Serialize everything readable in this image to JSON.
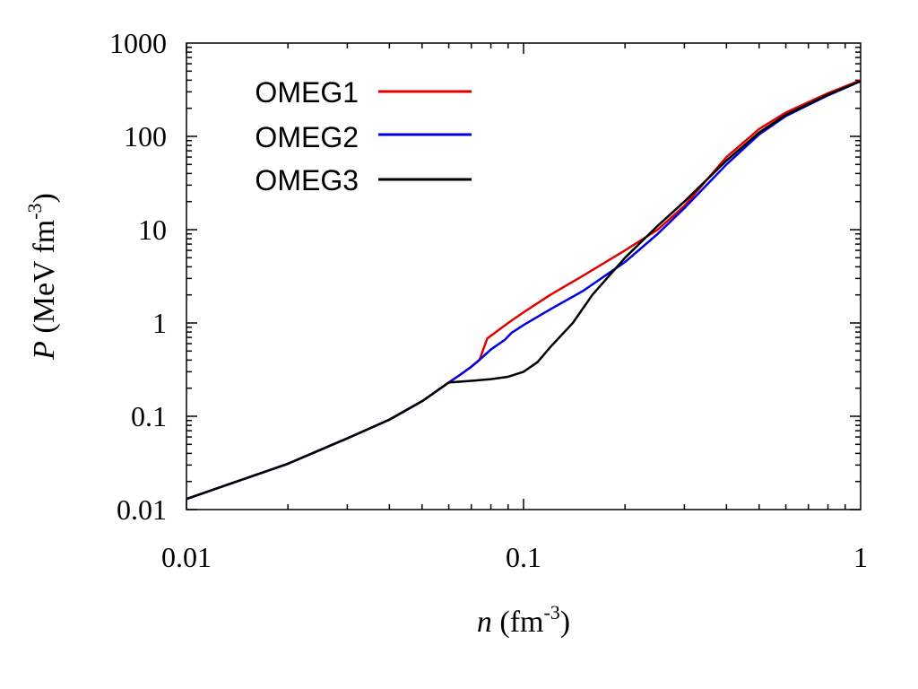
{
  "chart_data": {
    "type": "line",
    "x_scale": "log",
    "y_scale": "log",
    "xlim": [
      0.01,
      1
    ],
    "ylim": [
      0.01,
      1000
    ],
    "x_ticks": [
      {
        "value": 0.01,
        "label": "0.01"
      },
      {
        "value": 0.1,
        "label": "0.1"
      },
      {
        "value": 1,
        "label": "1"
      }
    ],
    "y_ticks": [
      {
        "value": 0.01,
        "label": "0.01"
      },
      {
        "value": 0.1,
        "label": "0.1"
      },
      {
        "value": 1,
        "label": "1"
      },
      {
        "value": 10,
        "label": "10"
      },
      {
        "value": 100,
        "label": "100"
      },
      {
        "value": 1000,
        "label": "1000"
      }
    ],
    "xlabel": {
      "symbol": "n",
      "text": " (fm",
      "exp": "-3",
      "close": ")"
    },
    "ylabel": {
      "symbol": "P",
      "text": " (MeV fm",
      "exp": "-3",
      "close": ")"
    },
    "legend_position": "top-left",
    "series": [
      {
        "name": "OMEG1",
        "color": "#e00000",
        "x": [
          0.01,
          0.02,
          0.03,
          0.04,
          0.05,
          0.06,
          0.065,
          0.07,
          0.074,
          0.078,
          0.09,
          0.1,
          0.12,
          0.15,
          0.2,
          0.25,
          0.3,
          0.4,
          0.5,
          0.6,
          0.8,
          1.0
        ],
        "y": [
          0.013,
          0.031,
          0.058,
          0.092,
          0.145,
          0.23,
          0.28,
          0.34,
          0.4,
          0.68,
          1.0,
          1.3,
          2.0,
          3.2,
          6.0,
          10.0,
          18.0,
          60.0,
          120.0,
          180.0,
          290.0,
          400.0
        ]
      },
      {
        "name": "OMEG2",
        "color": "#0000e0",
        "x": [
          0.01,
          0.02,
          0.03,
          0.04,
          0.05,
          0.06,
          0.065,
          0.07,
          0.075,
          0.08,
          0.088,
          0.092,
          0.1,
          0.12,
          0.15,
          0.2,
          0.25,
          0.3,
          0.4,
          0.5,
          0.6,
          0.8,
          1.0
        ],
        "y": [
          0.013,
          0.031,
          0.058,
          0.092,
          0.145,
          0.23,
          0.28,
          0.34,
          0.42,
          0.52,
          0.66,
          0.78,
          0.95,
          1.4,
          2.2,
          4.5,
          9.0,
          17.0,
          50.0,
          105.0,
          165.0,
          275.0,
          390.0
        ]
      },
      {
        "name": "OMEG3",
        "color": "#000000",
        "x": [
          0.01,
          0.02,
          0.03,
          0.04,
          0.05,
          0.06,
          0.07,
          0.08,
          0.09,
          0.1,
          0.11,
          0.12,
          0.14,
          0.16,
          0.2,
          0.25,
          0.3,
          0.4,
          0.5,
          0.6,
          0.8,
          1.0
        ],
        "y": [
          0.013,
          0.031,
          0.058,
          0.092,
          0.145,
          0.23,
          0.24,
          0.25,
          0.265,
          0.3,
          0.38,
          0.55,
          1.0,
          2.0,
          5.0,
          11.0,
          20.0,
          55.0,
          110.0,
          170.0,
          280.0,
          390.0
        ]
      }
    ]
  }
}
